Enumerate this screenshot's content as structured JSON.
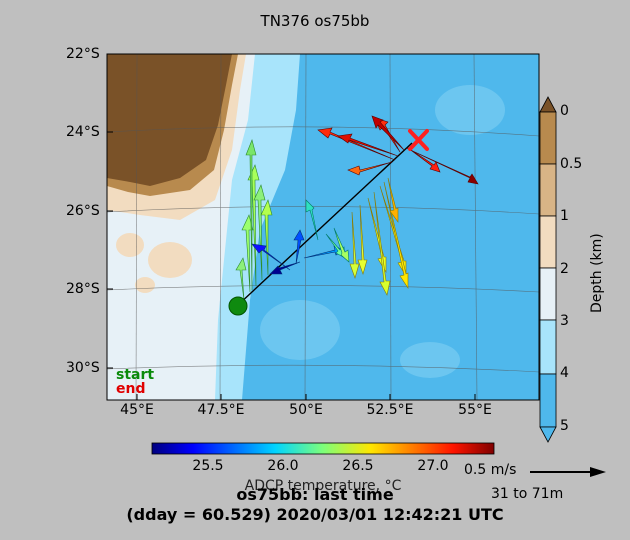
{
  "title": "TN376 os75bb",
  "map": {
    "lat_labels": [
      "22°S",
      "24°S",
      "26°S",
      "28°S",
      "30°S"
    ],
    "lon_labels": [
      "45°E",
      "47.5°E",
      "50°E",
      "52.5°E",
      "55°E"
    ],
    "legend_start": "start",
    "legend_end": "end",
    "start_color": "#008000",
    "end_color": "#ff2020"
  },
  "depth_colorbar": {
    "label": "Depth (km)",
    "ticks": [
      "0",
      "0.5",
      "1",
      "2",
      "3",
      "4",
      "5"
    ],
    "colors": [
      "#7a5228",
      "#b88a4e",
      "#d8b486",
      "#f2dcc0",
      "#e7f1f7",
      "#a8e4fb",
      "#4fb8ec"
    ]
  },
  "temperature_colorbar": {
    "label": "ADCP temperature, °C",
    "ticks": [
      "25.5",
      "26.0",
      "26.5",
      "27.0"
    ]
  },
  "scale": {
    "speed": "0.5 m/s",
    "depth_range": "31 to 71m"
  },
  "footer": {
    "line1": "os75bb: last time",
    "line2": "(dday = 60.529) 2020/03/01 12:42:21 UTC"
  }
}
